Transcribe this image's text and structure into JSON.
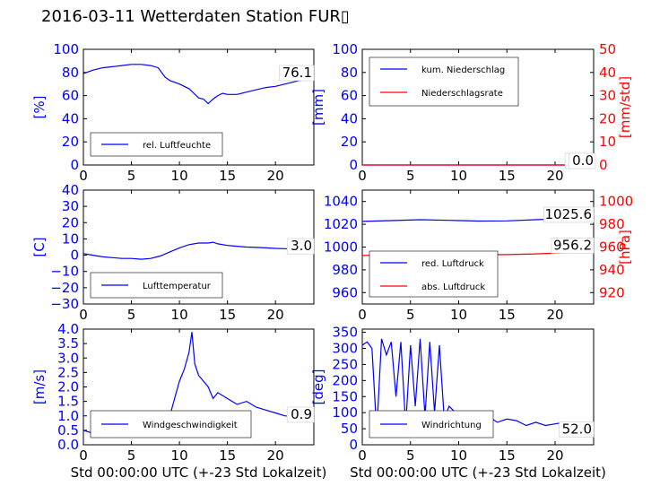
{
  "title": "2016-03-11 Wetterdaten Station FUR▯",
  "colors": {
    "blue": "#0000ff",
    "red": "#ff0000",
    "lightblue": "#7777ff",
    "dark": "#000000"
  },
  "chart_data": [
    {
      "type": "line",
      "id": "humidity",
      "xlim": [
        0,
        24
      ],
      "ylim": [
        0,
        100
      ],
      "xticks": [
        "0",
        "5",
        "10",
        "15",
        "20"
      ],
      "yticks": [
        "0",
        "20",
        "40",
        "60",
        "80",
        "100"
      ],
      "ylabel": "[%]",
      "xlabel": "",
      "legend": {
        "placement": "lower-left",
        "entries": [
          "rel. Luftfeuchte"
        ]
      },
      "last_value_label": "76.1",
      "series": [
        {
          "name": "rel. Luftfeuchte",
          "color": "#0000ff",
          "x": [
            0,
            1,
            2,
            3,
            4,
            5,
            6,
            7,
            7.8,
            8.5,
            9,
            10,
            11,
            11.5,
            12,
            12.5,
            13,
            13.5,
            14,
            14.5,
            15,
            16,
            17,
            18,
            19,
            20,
            21,
            22,
            23,
            24
          ],
          "y": [
            79,
            82,
            84,
            85,
            86,
            87,
            87,
            86,
            84,
            76,
            73,
            70,
            66,
            62,
            58,
            57,
            53,
            57,
            60,
            62,
            61,
            61,
            63,
            65,
            67,
            68,
            70,
            72,
            74,
            76
          ]
        }
      ]
    },
    {
      "type": "line",
      "id": "precip",
      "xlim": [
        0,
        24
      ],
      "ylim": [
        0,
        100
      ],
      "xticks": [
        "0",
        "5",
        "10",
        "15",
        "20"
      ],
      "yticks": [
        "0",
        "20",
        "40",
        "60",
        "80",
        "100"
      ],
      "ylabel": "[mm]",
      "y2lim": [
        0,
        50
      ],
      "y2ticks": [
        "0",
        "10",
        "20",
        "30",
        "40",
        "50"
      ],
      "y2label": "[mm/std]",
      "legend": {
        "placement": "top-left",
        "entries": [
          "kum. Niederschlag",
          "Niederschlagsrate"
        ]
      },
      "last_value_labels": [
        "0.0",
        "0.0"
      ],
      "series": [
        {
          "name": "kum. Niederschlag",
          "color": "#0000ff",
          "x": [
            0,
            24
          ],
          "y": [
            0,
            0
          ]
        },
        {
          "name": "Niederschlagsrate",
          "color": "#ff0000",
          "x": [
            0,
            24
          ],
          "y": [
            0,
            0
          ]
        }
      ]
    },
    {
      "type": "line",
      "id": "temperature",
      "xlim": [
        0,
        24
      ],
      "ylim": [
        -30,
        40
      ],
      "xticks": [
        "0",
        "5",
        "10",
        "15",
        "20"
      ],
      "yticks": [
        "−30",
        "−20",
        "−10",
        "0",
        "10",
        "20",
        "30",
        "40"
      ],
      "ylabel": "[C]",
      "legend": {
        "placement": "lower-left",
        "entries": [
          "Lufttemperatur"
        ]
      },
      "last_value_label": "3.0",
      "series": [
        {
          "name": "Lufttemperatur",
          "color": "#0000ff",
          "x": [
            0,
            1,
            2,
            3,
            4,
            5,
            6,
            7,
            8,
            9,
            10,
            11,
            12,
            13,
            13.5,
            14,
            15,
            16,
            17,
            18,
            19,
            20,
            21,
            22,
            23,
            24
          ],
          "y": [
            1,
            0,
            -1,
            -1.5,
            -2,
            -2,
            -2.5,
            -2,
            -0.5,
            2,
            4.5,
            6.5,
            7.5,
            7.5,
            8,
            7,
            6,
            5.5,
            5,
            4.8,
            4.5,
            4.2,
            4,
            3.6,
            3.2,
            3
          ]
        }
      ]
    },
    {
      "type": "line",
      "id": "pressure",
      "xlim": [
        0,
        24
      ],
      "ylim": [
        950,
        1050
      ],
      "xticks": [
        "0",
        "5",
        "10",
        "15",
        "20"
      ],
      "yticks": [
        "960",
        "980",
        "1000",
        "1020",
        "1040"
      ],
      "y2lim": [
        910,
        1010
      ],
      "y2ticks": [
        "920",
        "940",
        "960",
        "980",
        "1000"
      ],
      "y2label": "[hPa]",
      "legend": {
        "placement": "lower-left",
        "entries": [
          "red. Luftdruck",
          "abs. Luftdruck"
        ]
      },
      "last_value_labels": [
        "1025.6",
        "956.2"
      ],
      "series": [
        {
          "name": "red. Luftdruck",
          "color": "#0000ff",
          "x": [
            0,
            3,
            6,
            9,
            12,
            15,
            18,
            21,
            24
          ],
          "y": [
            1022.5,
            1023.2,
            1024,
            1023.5,
            1022.8,
            1023,
            1024,
            1025,
            1025.6
          ]
        },
        {
          "name": "abs. Luftdruck",
          "color": "#ff0000",
          "axis": "y2",
          "x": [
            0,
            3,
            6,
            9,
            12,
            15,
            18,
            21,
            24
          ],
          "y": [
            952.5,
            953,
            953.5,
            953.5,
            953.2,
            953.4,
            954,
            955,
            956.2
          ]
        }
      ]
    },
    {
      "type": "line",
      "id": "windspeed",
      "xlim": [
        0,
        24
      ],
      "ylim": [
        0,
        4
      ],
      "xticks": [
        "0",
        "5",
        "10",
        "15",
        "20"
      ],
      "yticks": [
        "0.0",
        "0.5",
        "1.0",
        "1.5",
        "2.0",
        "2.5",
        "3.0",
        "3.5",
        "4.0"
      ],
      "ylabel": "[m/s]",
      "xlabel": "Std 00:00:00 UTC (+-23 Std Lokalzeit)",
      "legend": {
        "placement": "lower-left",
        "entries": [
          "Windgeschwindigkeit"
        ]
      },
      "last_value_label": "0.9",
      "series": [
        {
          "name": "Windgeschwindigkeit",
          "color": "#0000ff",
          "x": [
            0,
            1,
            2,
            3,
            4,
            5,
            6,
            7,
            8,
            9,
            9.5,
            10,
            10.5,
            11,
            11.3,
            11.6,
            12,
            12.5,
            13,
            13.5,
            14,
            15,
            16,
            17,
            18,
            19,
            20,
            21,
            22,
            23,
            24
          ],
          "y": [
            0.5,
            0.4,
            0.6,
            0.5,
            0.7,
            0.6,
            0.5,
            0.6,
            0.7,
            1.0,
            1.6,
            2.2,
            2.6,
            3.2,
            3.9,
            2.8,
            2.4,
            2.2,
            2.0,
            1.6,
            1.8,
            1.6,
            1.4,
            1.5,
            1.3,
            1.2,
            1.1,
            1.0,
            1.0,
            0.9,
            0.9
          ]
        }
      ]
    },
    {
      "type": "line",
      "id": "winddir",
      "xlim": [
        0,
        24
      ],
      "ylim": [
        0,
        360
      ],
      "xticks": [
        "0",
        "5",
        "10",
        "15",
        "20"
      ],
      "yticks": [
        "0",
        "50",
        "100",
        "150",
        "200",
        "250",
        "300",
        "350"
      ],
      "ylabel": "[deg]",
      "xlabel": "Std 00:00:00 UTC (+-23 Std Lokalzeit)",
      "legend": {
        "placement": "lower-left",
        "entries": [
          "Windrichtung"
        ]
      },
      "last_value_label": "52.0",
      "series": [
        {
          "name": "Windrichtung",
          "color": "#0000ff",
          "x": [
            0,
            0.5,
            1,
            1.5,
            2,
            2.5,
            3,
            3.5,
            4,
            4.5,
            5,
            5.5,
            6,
            6.5,
            7,
            7.5,
            8,
            8.5,
            9,
            10,
            11,
            12,
            13,
            14,
            15,
            16,
            17,
            18,
            19,
            20,
            21,
            22,
            23,
            24
          ],
          "y": [
            310,
            320,
            300,
            40,
            330,
            280,
            320,
            150,
            320,
            60,
            310,
            120,
            330,
            90,
            320,
            100,
            310,
            80,
            120,
            90,
            100,
            80,
            90,
            70,
            80,
            75,
            60,
            70,
            60,
            65,
            70,
            55,
            60,
            52
          ]
        }
      ]
    }
  ]
}
